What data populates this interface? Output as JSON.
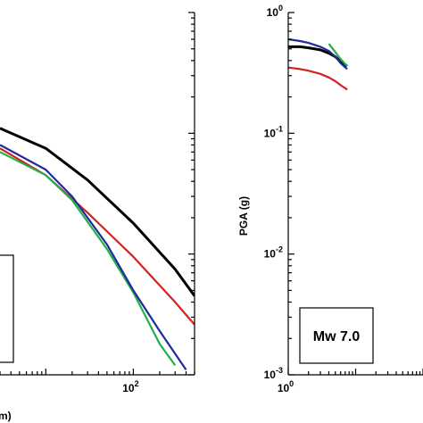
{
  "chart_data": [
    {
      "type": "line",
      "title": "",
      "xscale": "log",
      "yscale": "log",
      "xlabel_visible": "m)",
      "x_tick_labels": [
        {
          "base": "10",
          "exp": "2",
          "value": 100
        }
      ],
      "xlim": [
        3,
        500
      ],
      "ylim": [
        0.001,
        1
      ],
      "annotation_box": "",
      "series": [
        {
          "color": "#000000",
          "x": [
            3,
            10,
            30,
            100,
            300,
            500
          ],
          "y": [
            0.11,
            0.075,
            0.041,
            0.018,
            0.0075,
            0.0045
          ]
        },
        {
          "color": "#d22222",
          "x": [
            3,
            10,
            30,
            100,
            300,
            500
          ],
          "y": [
            0.075,
            0.045,
            0.022,
            0.0095,
            0.004,
            0.0026
          ]
        },
        {
          "color": "#22b14c",
          "x": [
            3,
            10,
            20,
            50,
            100,
            200,
            300
          ],
          "y": [
            0.07,
            0.045,
            0.028,
            0.011,
            0.0048,
            0.0018,
            0.0012
          ]
        },
        {
          "color": "#1f2b9b",
          "x": [
            3,
            10,
            20,
            50,
            100,
            200,
            400
          ],
          "y": [
            0.08,
            0.05,
            0.03,
            0.012,
            0.005,
            0.0023,
            0.0011
          ]
        }
      ]
    },
    {
      "type": "line",
      "title": "",
      "xscale": "log",
      "yscale": "log",
      "ylabel": "PGA (g)",
      "x_tick_labels": [
        {
          "base": "10",
          "exp": "0",
          "value": 1
        }
      ],
      "y_tick_labels": [
        {
          "base": "10",
          "exp": "0",
          "value": 1
        },
        {
          "base": "10",
          "exp": "-1",
          "value": 0.1
        },
        {
          "base": "10",
          "exp": "-2",
          "value": 0.01
        },
        {
          "base": "10",
          "exp": "-3",
          "value": 0.001
        }
      ],
      "xlim": [
        1,
        100
      ],
      "ylim": [
        0.001,
        1
      ],
      "annotation_box": "Mw 7.0",
      "series": [
        {
          "color": "#000000",
          "x": [
            1,
            1.5,
            2,
            3,
            4,
            5,
            6,
            7.5
          ],
          "y": [
            0.52,
            0.52,
            0.51,
            0.49,
            0.46,
            0.43,
            0.39,
            0.36
          ]
        },
        {
          "color": "#d22222",
          "x": [
            1,
            1.5,
            2,
            3,
            4,
            5,
            6,
            7.5
          ],
          "y": [
            0.35,
            0.34,
            0.33,
            0.31,
            0.29,
            0.27,
            0.25,
            0.23
          ]
        },
        {
          "color": "#22b14c",
          "x": [
            4,
            5,
            6,
            7.5
          ],
          "y": [
            0.55,
            0.47,
            0.41,
            0.36
          ]
        },
        {
          "color": "#1f2b9b",
          "x": [
            1,
            1.5,
            2,
            3,
            4,
            5,
            6,
            7.5
          ],
          "y": [
            0.6,
            0.58,
            0.56,
            0.52,
            0.48,
            0.43,
            0.38,
            0.34
          ]
        }
      ]
    }
  ]
}
